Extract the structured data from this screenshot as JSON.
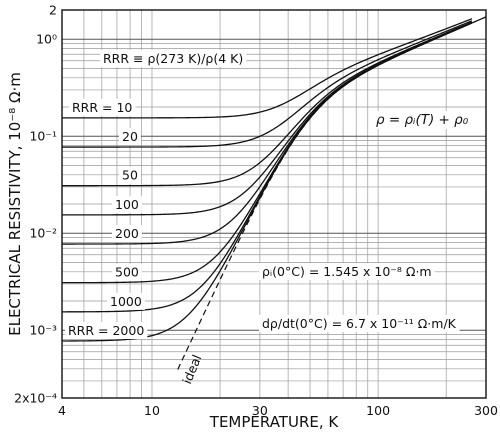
{
  "chart_data": {
    "type": "line",
    "title": "",
    "xlabel": "TEMPERATURE, K",
    "ylabel": "ELECTRICAL RESISTIVITY, 10⁻⁸ Ω·m",
    "xscale": "log",
    "yscale": "log",
    "xlim": [
      4,
      300
    ],
    "ylim": [
      0.0002,
      2
    ],
    "grid": true,
    "x_ticks": [
      {
        "value": 4,
        "label": "4"
      },
      {
        "value": 10,
        "label": "10"
      },
      {
        "value": 30,
        "label": "30"
      },
      {
        "value": 100,
        "label": "100"
      },
      {
        "value": 300,
        "label": "300"
      }
    ],
    "y_ticks": [
      {
        "value": 2,
        "label": "2"
      },
      {
        "value": 1,
        "label": "10⁰"
      },
      {
        "value": 0.1,
        "label": "10⁻¹"
      },
      {
        "value": 0.01,
        "label": "10⁻²"
      },
      {
        "value": 0.001,
        "label": "10⁻³"
      },
      {
        "value": 0.0002,
        "label": "2x10⁻⁴"
      }
    ],
    "rho_273K": 1.545,
    "series": [
      {
        "name": "RRR = 10",
        "rrr": 10,
        "residual": 0.1545
      },
      {
        "name": "20",
        "rrr": 20,
        "residual": 0.0773
      },
      {
        "name": "50",
        "rrr": 50,
        "residual": 0.0309
      },
      {
        "name": "100",
        "rrr": 100,
        "residual": 0.01545
      },
      {
        "name": "200",
        "rrr": 200,
        "residual": 0.00773
      },
      {
        "name": "500",
        "rrr": 500,
        "residual": 0.00309
      },
      {
        "name": "1000",
        "rrr": 1000,
        "residual": 0.001545
      },
      {
        "name": "RRR = 2000",
        "rrr": 2000,
        "residual": 0.000773
      }
    ],
    "ideal": {
      "label": "ideal",
      "dashed": true
    },
    "annotations": {
      "rrr_definition": "RRR ≡ ρ(273 K)/ρ(4 K)",
      "rho_equation": "ρ = ρᵢ(T) + ρ₀",
      "rho_i_value": "ρᵢ(0°C) = 1.545 x 10⁻⁸ Ω·m",
      "drho_dt_value": "dρ/dt(0°C) = 6.7 x 10⁻¹¹ Ω·m/K"
    }
  }
}
